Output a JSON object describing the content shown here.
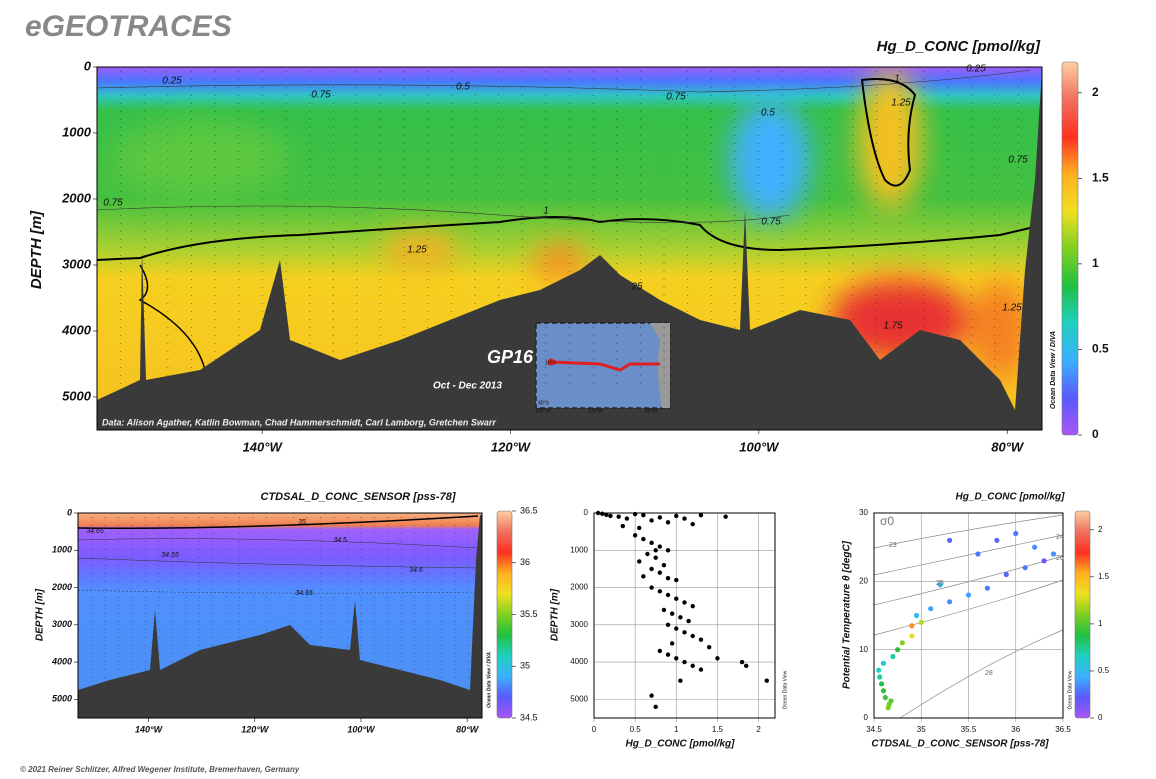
{
  "header": {
    "title": "eGEOTRACES"
  },
  "footer": {
    "text": "© 2021 Reiner Schlitzer, Alfred Wegener Institute, Bremerhaven, Germany"
  },
  "chart_data": [
    {
      "type": "section",
      "title": "Hg_D_CONC [pmol/kg]",
      "ylabel": "DEPTH [m]",
      "xlim": [
        -153.3,
        -77.2
      ],
      "ylim": [
        0,
        5500
      ],
      "y_inverted": true,
      "xticks": [
        {
          "value": -140,
          "label": "140°W"
        },
        {
          "value": -120,
          "label": "120°W"
        },
        {
          "value": -100,
          "label": "100°W"
        },
        {
          "value": -80,
          "label": "80°W"
        }
      ],
      "yticks": [
        0,
        1000,
        2000,
        3000,
        4000,
        5000
      ],
      "colorbar": {
        "lim": [
          0,
          2.18
        ],
        "ticks": [
          0,
          0.5,
          1,
          1.5,
          2
        ]
      },
      "contour_labels": [
        "0.25",
        "0.75",
        "0.5",
        "0.75",
        "0.5",
        "1",
        "1.25",
        "0.25",
        "0.75",
        "0.75",
        "1",
        "0.75",
        "1.25",
        "25",
        "1.75",
        "1.25"
      ],
      "credit": "Data: Alison Agather, Katlin Bowman, Chad Hammerschmidt, Carl Lamborg, Gretchen Swarr",
      "watermark": "Ocean Data View / DIVA",
      "inset": {
        "label": "GP16",
        "dates": "Oct - Dec 2013",
        "lat_ticks": [
          "10°S",
          "40°S"
        ],
        "lon_ticks": [
          "160°W",
          "120°W",
          "80°W"
        ]
      }
    },
    {
      "type": "section",
      "title": "CTDSAL_D_CONC_SENSOR [pss-78]",
      "ylabel": "DEPTH [m]",
      "xlim": [
        -153.3,
        -77.2
      ],
      "ylim": [
        0,
        5500
      ],
      "y_inverted": true,
      "xticks": [
        {
          "value": -140,
          "label": "140°W"
        },
        {
          "value": -120,
          "label": "120°W"
        },
        {
          "value": -100,
          "label": "100°W"
        },
        {
          "value": -80,
          "label": "80°W"
        }
      ],
      "yticks": [
        0,
        1000,
        2000,
        3000,
        4000,
        5000
      ],
      "colorbar": {
        "lim": [
          34.5,
          36.5
        ],
        "ticks": [
          34.5,
          35,
          35.5,
          36,
          36.5
        ]
      },
      "contour_labels": [
        "34.65",
        "34.55",
        "35",
        "34.5",
        "34.6",
        "34.65"
      ],
      "watermark": "Ocean Data View / DIVA"
    },
    {
      "type": "scatter",
      "xlabel": "Hg_D_CONC [pmol/kg]",
      "ylabel": "DEPTH [m]",
      "xlim": [
        0,
        2.2
      ],
      "ylim": [
        0,
        5500
      ],
      "y_inverted": true,
      "grid": true,
      "color": "#000000",
      "xticks": [
        0,
        0.5,
        1,
        1.5,
        2
      ],
      "yticks": [
        0,
        1000,
        2000,
        3000,
        4000,
        5000
      ],
      "x": [
        0.05,
        0.1,
        0.15,
        0.2,
        0.3,
        0.4,
        0.5,
        0.6,
        0.7,
        0.8,
        0.9,
        1.0,
        1.1,
        1.2,
        1.3,
        1.6,
        0.35,
        0.55,
        0.5,
        0.6,
        0.7,
        0.8,
        0.9,
        0.65,
        0.75,
        0.55,
        0.85,
        0.7,
        0.8,
        0.6,
        0.9,
        1.0,
        0.75,
        0.7,
        0.8,
        0.9,
        1.0,
        1.1,
        1.2,
        0.85,
        0.95,
        1.05,
        1.15,
        0.9,
        1.0,
        1.1,
        1.2,
        1.3,
        0.95,
        0.8,
        0.9,
        1.0,
        1.1,
        1.2,
        1.3,
        1.4,
        1.5,
        1.8,
        1.85,
        0.7,
        0.75,
        1.05,
        2.1
      ],
      "y": [
        0,
        20,
        50,
        80,
        100,
        150,
        30,
        60,
        200,
        120,
        250,
        80,
        150,
        300,
        60,
        100,
        350,
        400,
        600,
        700,
        800,
        900,
        1000,
        1100,
        1200,
        1300,
        1400,
        1500,
        1600,
        1700,
        1750,
        1800,
        1000,
        2000,
        2100,
        2200,
        2300,
        2400,
        2500,
        2600,
        2700,
        2800,
        2900,
        3000,
        3100,
        3200,
        3300,
        3400,
        3500,
        3700,
        3800,
        3900,
        4000,
        4100,
        4200,
        3600,
        3900,
        4000,
        4100,
        4900,
        5200,
        4500,
        4500
      ],
      "watermark": "Ocean Data View"
    },
    {
      "type": "scatter",
      "title": "Hg_D_CONC [pmol/kg]",
      "xlabel": "CTDSAL_D_CONC_SENSOR [pss-78]",
      "ylabel": "Potential Temperature θ [degC]",
      "xlim": [
        34.5,
        36.5
      ],
      "ylim": [
        0,
        30
      ],
      "grid": true,
      "xticks": [
        34.5,
        35,
        35.5,
        36,
        36.5
      ],
      "yticks": [
        0,
        10,
        20,
        30
      ],
      "x": [
        34.65,
        34.66,
        34.68,
        34.62,
        34.6,
        34.58,
        34.56,
        34.55,
        34.6,
        34.7,
        34.75,
        34.8,
        34.9,
        35.0,
        34.95,
        35.1,
        35.3,
        35.5,
        35.7,
        35.9,
        36.1,
        36.3,
        36.4,
        35.2,
        35.6,
        35.8,
        36.0,
        36.2,
        35.3,
        34.9
      ],
      "y": [
        1.5,
        2,
        2.5,
        3,
        4,
        5,
        6,
        7,
        8,
        9,
        10,
        11,
        12,
        14,
        15,
        16,
        17,
        18,
        19,
        21,
        22,
        23,
        24,
        19.5,
        24,
        26,
        27,
        25,
        26,
        13.5
      ],
      "c": [
        1.1,
        1.05,
        1.0,
        0.95,
        0.9,
        0.85,
        0.7,
        0.65,
        0.6,
        0.7,
        0.9,
        1.1,
        1.3,
        1.2,
        0.5,
        0.4,
        0.35,
        0.4,
        0.3,
        0.25,
        0.3,
        0.2,
        0.35,
        0.5,
        0.3,
        0.25,
        0.3,
        0.35,
        0.25,
        1.6
      ],
      "colorbar": {
        "lim": [
          0,
          2.2
        ],
        "ticks": [
          0,
          0.5,
          1,
          1.5,
          2
        ]
      },
      "isopycnal_label": "σ0",
      "isopycnal_labels": [
        "23",
        "24",
        "25",
        "26",
        "28"
      ],
      "watermark": "Ocean Data View"
    }
  ]
}
